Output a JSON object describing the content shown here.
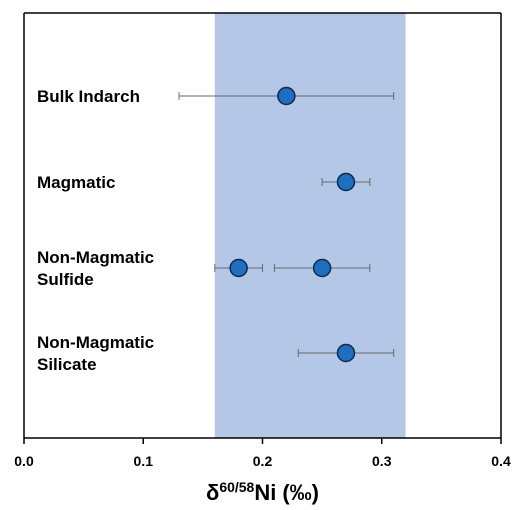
{
  "chart_data": {
    "type": "scatter",
    "title": "",
    "xlabel": {
      "delta": "δ",
      "superscript": "60/58",
      "element": "Ni",
      "unit": "(‰)"
    },
    "ylabel": "",
    "xlim": [
      0.0,
      0.4
    ],
    "x_ticks": [
      "0.0",
      "0.1",
      "0.2",
      "0.3",
      "0.4"
    ],
    "grid": false,
    "shaded_band": {
      "x_min": 0.16,
      "x_max": 0.32,
      "color": "#b4c7e7"
    },
    "marker_color": "#1f6fc0",
    "categories": [
      {
        "lines": [
          "Bulk Indarch"
        ]
      },
      {
        "lines": [
          "Magmatic"
        ]
      },
      {
        "lines": [
          "Non-Magmatic",
          "Sulfide"
        ]
      },
      {
        "lines": [
          "Non-Magmatic",
          "Silicate"
        ]
      }
    ],
    "points": [
      {
        "category": 0,
        "x": 0.22,
        "x_low": 0.13,
        "x_high": 0.31
      },
      {
        "category": 1,
        "x": 0.27,
        "x_low": 0.25,
        "x_high": 0.29
      },
      {
        "category": 2,
        "x": 0.18,
        "x_low": 0.16,
        "x_high": 0.2
      },
      {
        "category": 2,
        "x": 0.25,
        "x_low": 0.21,
        "x_high": 0.29
      },
      {
        "category": 3,
        "x": 0.27,
        "x_low": 0.23,
        "x_high": 0.31
      }
    ]
  }
}
